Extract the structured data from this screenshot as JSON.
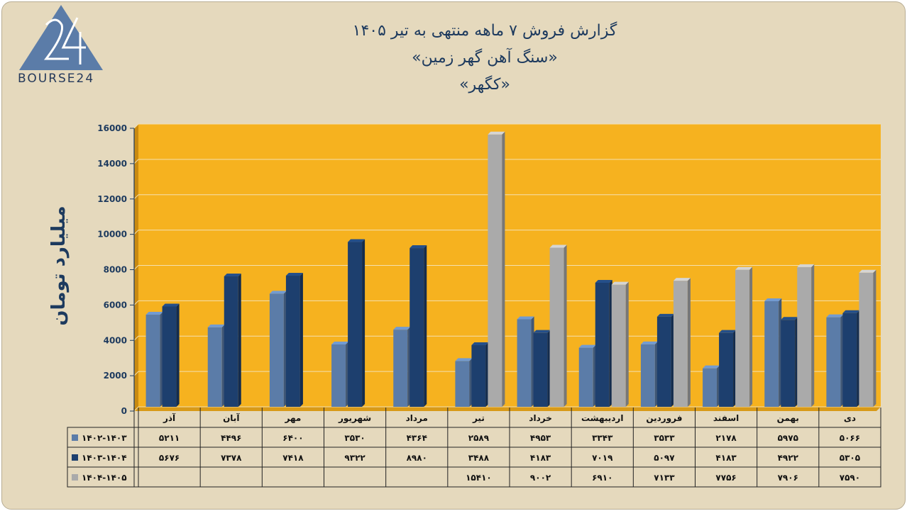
{
  "logo": {
    "text": "BOURSE24"
  },
  "title": {
    "line1": "گزارش  فروش ۷ ماهه منتهی به تیر ۱۴۰۵",
    "line2": "«سنگ آهن گهر زمین»",
    "line3": "«کگهر»"
  },
  "colors": {
    "plot_bg": "#f6b21f",
    "series1": "#5b7ca8",
    "series2": "#1d3f6e",
    "series3": "#aaaaaa"
  },
  "chart_data": {
    "type": "bar",
    "ylabel": "میلیارد تومان",
    "ylim": [
      0,
      16000
    ],
    "yticks": [
      0,
      2000,
      4000,
      6000,
      8000,
      10000,
      12000,
      14000,
      16000
    ],
    "ytick_labels": [
      "0",
      "2000",
      "4000",
      "6000",
      "8000",
      "10000",
      "12000",
      "14000",
      "16000"
    ],
    "categories": [
      "دی",
      "بهمن",
      "اسفند",
      "فروردین",
      "اردیبهشت",
      "خرداد",
      "تیر",
      "مرداد",
      "شهریور",
      "مهر",
      "آبان",
      "آذر"
    ],
    "series": [
      {
        "name": "۱۴۰۲-۱۴۰۳",
        "values": [
          5066,
          5975,
          2178,
          3533,
          3343,
          4953,
          2589,
          4364,
          3530,
          6400,
          4496,
          5211
        ],
        "labels": [
          "۵۰۶۶",
          "۵۹۷۵",
          "۲۱۷۸",
          "۳۵۳۳",
          "۳۳۴۳",
          "۴۹۵۳",
          "۲۵۸۹",
          "۴۳۶۴",
          "۳۵۳۰",
          "۶۴۰۰",
          "۴۴۹۶",
          "۵۲۱۱"
        ]
      },
      {
        "name": "۱۴۰۳-۱۴۰۴",
        "values": [
          5305,
          4922,
          4183,
          5097,
          7019,
          4183,
          3488,
          8980,
          9322,
          7418,
          7378,
          5676
        ],
        "labels": [
          "۵۳۰۵",
          "۴۹۲۲",
          "۴۱۸۳",
          "۵۰۹۷",
          "۷۰۱۹",
          "۴۱۸۳",
          "۳۴۸۸",
          "۸۹۸۰",
          "۹۳۲۲",
          "۷۴۱۸",
          "۷۳۷۸",
          "۵۶۷۶"
        ]
      },
      {
        "name": "۱۴۰۴-۱۴۰۵",
        "values": [
          7590,
          7906,
          7756,
          7133,
          6910,
          9002,
          15410,
          null,
          null,
          null,
          null,
          null
        ],
        "labels": [
          "۷۵۹۰",
          "۷۹۰۶",
          "۷۷۵۶",
          "۷۱۳۳",
          "۶۹۱۰",
          "۹۰۰۲",
          "۱۵۴۱۰",
          "",
          "",
          "",
          "",
          ""
        ]
      }
    ],
    "legend": "table-left",
    "grid": true
  }
}
